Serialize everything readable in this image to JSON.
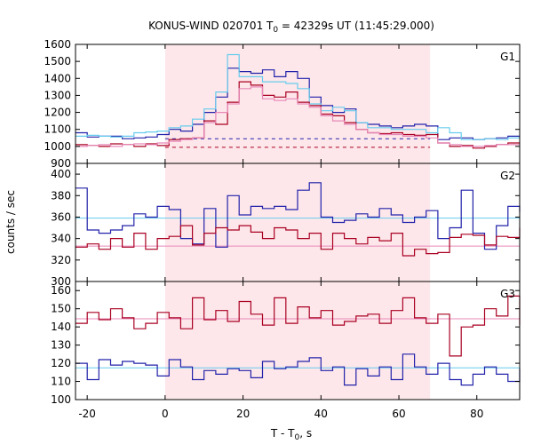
{
  "chart_data": {
    "type": "line",
    "title_main": "KONUS-WIND 020701 T",
    "title_sub": "0",
    "title_rest": " = 42329s UT (11:45:29.000)",
    "xlabel_main": "T - T",
    "xlabel_sub": "0",
    "xlabel_rest": ", s",
    "ylabel": "counts / sec",
    "xlim": [
      -23,
      91
    ],
    "xticks": [
      -20,
      0,
      20,
      40,
      60,
      80
    ],
    "shaded_interval": [
      0,
      68
    ],
    "colors": {
      "shade": "#fde7ea",
      "dark_red": "#aa0022",
      "pink": "#e888b8",
      "dark_blue": "#2222aa",
      "light_blue": "#66ccee"
    },
    "panels": [
      {
        "label": "G1",
        "ylim": [
          900,
          1600
        ],
        "yticks": [
          900,
          1000,
          1100,
          1200,
          1300,
          1400,
          1500,
          1600
        ],
        "background_levels": [
          {
            "color": "#2222aa",
            "style": "dashed",
            "value": 1045,
            "range": [
              0,
              68
            ]
          },
          {
            "color": "#aa0022",
            "style": "dashed",
            "value": 995,
            "range": [
              0,
              68
            ]
          }
        ],
        "series": [
          {
            "color": "#2222aa",
            "step": true,
            "x": [
              -23,
              -20,
              -17,
              -14,
              -11,
              -8,
              -5,
              -2,
              1,
              4,
              7,
              10,
              13,
              16,
              19,
              22,
              25,
              28,
              31,
              34,
              37,
              40,
              43,
              46,
              49,
              52,
              55,
              58,
              61,
              64,
              67,
              70,
              73,
              76,
              79,
              82,
              85,
              88,
              91
            ],
            "y": [
              1080,
              1055,
              1060,
              1060,
              1045,
              1050,
              1055,
              1070,
              1100,
              1090,
              1130,
              1200,
              1290,
              1460,
              1440,
              1430,
              1450,
              1410,
              1440,
              1400,
              1290,
              1240,
              1200,
              1220,
              1140,
              1130,
              1120,
              1110,
              1120,
              1130,
              1120,
              1040,
              1050,
              1050,
              1040,
              1045,
              1050,
              1060,
              1060
            ]
          },
          {
            "color": "#66ccee",
            "step": true,
            "x": [
              -23,
              -20,
              -17,
              -14,
              -11,
              -8,
              -5,
              -2,
              1,
              4,
              7,
              10,
              13,
              16,
              19,
              22,
              25,
              28,
              31,
              34,
              37,
              40,
              43,
              46,
              49,
              52,
              55,
              58,
              61,
              64,
              67,
              70,
              73,
              76,
              79,
              82,
              85,
              88,
              91
            ],
            "y": [
              1060,
              1065,
              1060,
              1055,
              1060,
              1080,
              1085,
              1090,
              1110,
              1120,
              1160,
              1220,
              1320,
              1540,
              1410,
              1410,
              1380,
              1380,
              1370,
              1340,
              1250,
              1210,
              1230,
              1210,
              1140,
              1110,
              1110,
              1100,
              1100,
              1100,
              1080,
              1110,
              1080,
              1040,
              1040,
              1045,
              1040,
              1050,
              1050
            ]
          },
          {
            "color": "#aa0022",
            "step": true,
            "x": [
              -23,
              -20,
              -17,
              -14,
              -11,
              -8,
              -5,
              -2,
              1,
              4,
              7,
              10,
              13,
              16,
              19,
              22,
              25,
              28,
              31,
              34,
              37,
              40,
              43,
              46,
              49,
              52,
              55,
              58,
              61,
              64,
              67,
              70,
              73,
              76,
              79,
              82,
              85,
              88,
              91
            ],
            "y": [
              1010,
              1005,
              1000,
              1015,
              1010,
              1000,
              1015,
              1005,
              1040,
              1045,
              1050,
              1150,
              1130,
              1260,
              1380,
              1360,
              1300,
              1290,
              1320,
              1260,
              1240,
              1190,
              1180,
              1140,
              1100,
              1080,
              1075,
              1080,
              1070,
              1065,
              1070,
              1020,
              1000,
              1005,
              990,
              1000,
              1010,
              1020,
              1020
            ]
          },
          {
            "color": "#e888b8",
            "step": true,
            "x": [
              -23,
              -20,
              -17,
              -14,
              -11,
              -8,
              -5,
              -2,
              1,
              4,
              7,
              10,
              13,
              16,
              19,
              22,
              25,
              28,
              31,
              34,
              37,
              40,
              43,
              46,
              49,
              52,
              55,
              58,
              61,
              64,
              67,
              70,
              73,
              76,
              79,
              82,
              85,
              88,
              91
            ],
            "y": [
              1000,
              1005,
              1010,
              1000,
              1010,
              1015,
              1010,
              1020,
              1030,
              1040,
              1050,
              1140,
              1200,
              1250,
              1340,
              1350,
              1280,
              1270,
              1280,
              1250,
              1230,
              1180,
              1150,
              1130,
              1100,
              1080,
              1070,
              1070,
              1060,
              1060,
              1050,
              1020,
              1010,
              1000,
              1000,
              1005,
              1010,
              1010,
              1010
            ]
          }
        ]
      },
      {
        "label": "G2",
        "ylim": [
          300,
          410
        ],
        "yticks": [
          300,
          320,
          340,
          360,
          380,
          400
        ],
        "background_levels": [
          {
            "color": "#66ccee",
            "style": "solid",
            "value": 359,
            "range": [
              -23,
              91
            ]
          },
          {
            "color": "#e888b8",
            "style": "solid",
            "value": 333,
            "range": [
              -23,
              91
            ]
          }
        ],
        "series": [
          {
            "color": "#2222aa",
            "step": true,
            "x": [
              -23,
              -20,
              -17,
              -14,
              -11,
              -8,
              -5,
              -2,
              1,
              4,
              7,
              10,
              13,
              16,
              19,
              22,
              25,
              28,
              31,
              34,
              37,
              40,
              43,
              46,
              49,
              52,
              55,
              58,
              61,
              64,
              67,
              70,
              73,
              76,
              79,
              82,
              85,
              88,
              91
            ],
            "y": [
              387,
              348,
              345,
              348,
              352,
              363,
              360,
              370,
              367,
              340,
              335,
              368,
              332,
              380,
              362,
              370,
              368,
              370,
              367,
              385,
              392,
              360,
              355,
              357,
              363,
              360,
              368,
              362,
              355,
              360,
              366,
              340,
              350,
              385,
              345,
              330,
              352,
              370,
              365
            ]
          },
          {
            "color": "#aa0022",
            "step": true,
            "x": [
              -23,
              -20,
              -17,
              -14,
              -11,
              -8,
              -5,
              -2,
              1,
              4,
              7,
              10,
              13,
              16,
              19,
              22,
              25,
              28,
              31,
              34,
              37,
              40,
              43,
              46,
              49,
              52,
              55,
              58,
              61,
              64,
              67,
              70,
              73,
              76,
              79,
              82,
              85,
              88,
              91
            ],
            "y": [
              332,
              335,
              330,
              340,
              332,
              345,
              330,
              340,
              342,
              352,
              334,
              345,
              350,
              348,
              352,
              346,
              340,
              350,
              348,
              340,
              345,
              330,
              345,
              340,
              335,
              341,
              338,
              345,
              324,
              330,
              326,
              327,
              341,
              344,
              343,
              334,
              342,
              341,
              350
            ]
          }
        ]
      },
      {
        "label": "G3",
        "ylim": [
          100,
          165
        ],
        "yticks": [
          100,
          110,
          120,
          130,
          140,
          150,
          160
        ],
        "background_levels": [
          {
            "color": "#e888b8",
            "style": "solid",
            "value": 144.5,
            "range": [
              -23,
              91
            ]
          },
          {
            "color": "#66ccee",
            "style": "solid",
            "value": 117.5,
            "range": [
              -23,
              91
            ]
          }
        ],
        "series": [
          {
            "color": "#aa0022",
            "step": true,
            "x": [
              -23,
              -20,
              -17,
              -14,
              -11,
              -8,
              -5,
              -2,
              1,
              4,
              7,
              10,
              13,
              16,
              19,
              22,
              25,
              28,
              31,
              34,
              37,
              40,
              43,
              46,
              49,
              52,
              55,
              58,
              61,
              64,
              67,
              70,
              73,
              76,
              79,
              82,
              85,
              88,
              91
            ],
            "y": [
              142,
              148,
              144,
              150,
              145,
              139,
              142,
              148,
              145,
              139,
              156,
              144,
              149,
              143,
              154,
              147,
              141,
              156,
              142,
              151,
              145,
              149,
              141,
              143,
              146,
              147,
              142,
              149,
              156,
              145,
              142,
              147,
              124,
              140,
              141,
              150,
              146,
              157,
              141
            ]
          },
          {
            "color": "#2222aa",
            "step": true,
            "x": [
              -23,
              -20,
              -17,
              -14,
              -11,
              -8,
              -5,
              -2,
              1,
              4,
              7,
              10,
              13,
              16,
              19,
              22,
              25,
              28,
              31,
              34,
              37,
              40,
              43,
              46,
              49,
              52,
              55,
              58,
              61,
              64,
              67,
              70,
              73,
              76,
              79,
              82,
              85,
              88,
              91
            ],
            "y": [
              120,
              111,
              122,
              119,
              121,
              120,
              119,
              113,
              122,
              118,
              111,
              116,
              114,
              117,
              116,
              112,
              121,
              117,
              118,
              121,
              123,
              116,
              118,
              108,
              117,
              113,
              118,
              111,
              125,
              118,
              114,
              120,
              111,
              108,
              114,
              118,
              114,
              110,
              117
            ]
          }
        ]
      }
    ]
  }
}
